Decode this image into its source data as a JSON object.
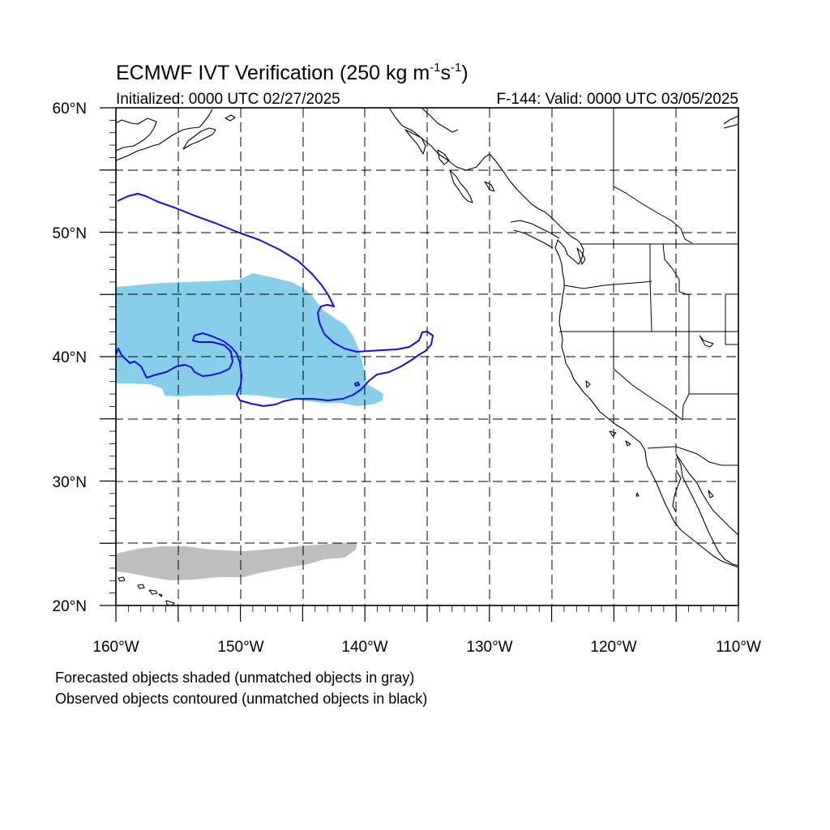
{
  "title": {
    "main": "ECMWF IVT Verification (250 kg m",
    "sup1": "-1",
    "mid": "s",
    "sup2": "-1",
    "end": ")"
  },
  "subtitle": {
    "left": "Initialized: 0000 UTC 02/27/2025",
    "right": "F-144: Valid: 0000 UTC 03/05/2025"
  },
  "lat_labels": [
    "60°N",
    "50°N",
    "40°N",
    "30°N",
    "20°N"
  ],
  "lon_labels": [
    "160°W",
    "150°W",
    "140°W",
    "130°W",
    "120°W",
    "110°W"
  ],
  "notes": [
    "Forecasted objects shaded (unmatched objects in gray)",
    "Observed objects contoured (unmatched objects in black)"
  ],
  "colors": {
    "matched_forecast_fill": "#87ceeb",
    "unmatched_forecast_fill": "#bebebe",
    "observed_contour": "#1010e0",
    "land_lines": "#000000"
  },
  "map_extent": {
    "lon_min": -160,
    "lon_max": -110,
    "lat_min": 20,
    "lat_max": 60
  }
}
